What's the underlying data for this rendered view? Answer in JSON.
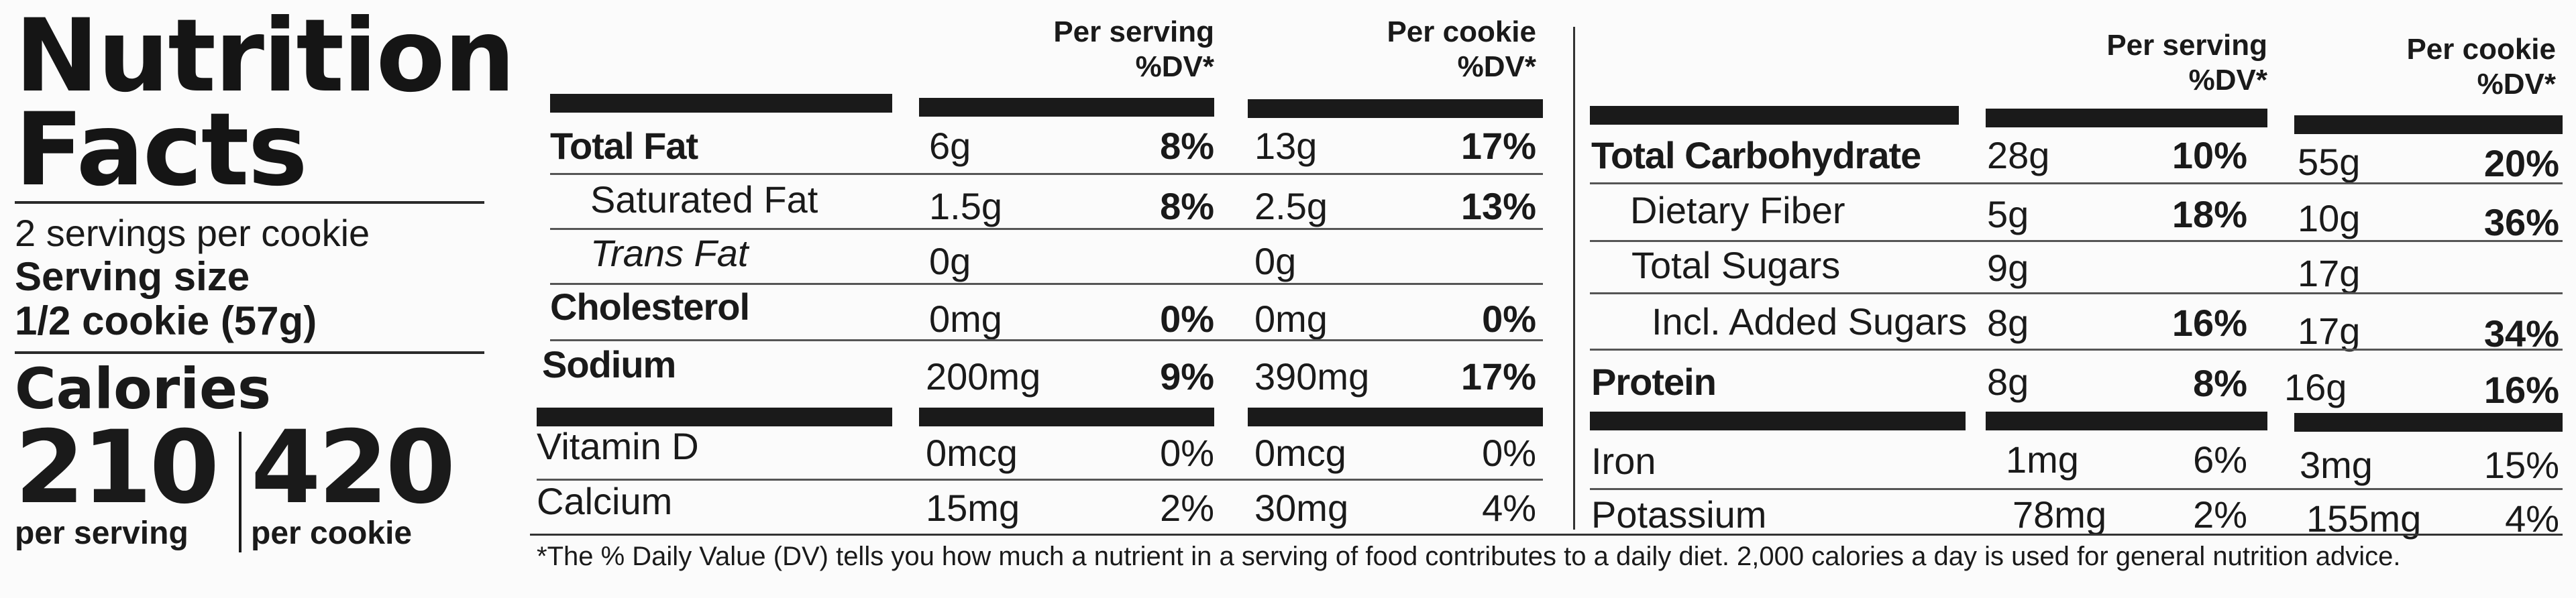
{
  "title_line1": "Nutrition",
  "title_line2": "Facts",
  "servings_per": "2 servings per cookie",
  "serving_size_label": "Serving size",
  "serving_size_value": "1/2 cookie (57g)",
  "calories_label": "Calories",
  "calories_serving": "210",
  "calories_cookie": "420",
  "per_serving_label": "per serving",
  "per_cookie_label": "per cookie",
  "headers": {
    "per_serving": "Per serving",
    "per_cookie": "Per cookie",
    "dv": "%DV*"
  },
  "left_rows": [
    {
      "name": "Total Fat",
      "s_amt": "6g",
      "s_dv": "8%",
      "c_amt": "13g",
      "c_dv": "17%"
    },
    {
      "name": "Saturated Fat",
      "s_amt": "1.5g",
      "s_dv": "8%",
      "c_amt": "2.5g",
      "c_dv": "13%"
    },
    {
      "name": "Trans Fat",
      "s_amt": "0g",
      "s_dv": "",
      "c_amt": "0g",
      "c_dv": ""
    },
    {
      "name": "Cholesterol",
      "s_amt": "0mg",
      "s_dv": "0%",
      "c_amt": "0mg",
      "c_dv": "0%"
    },
    {
      "name": "Sodium",
      "s_amt": "200mg",
      "s_dv": "9%",
      "c_amt": "390mg",
      "c_dv": "17%"
    },
    {
      "name": "Vitamin D",
      "s_amt": "0mcg",
      "s_dv": "0%",
      "c_amt": "0mcg",
      "c_dv": "0%"
    },
    {
      "name": "Calcium",
      "s_amt": "15mg",
      "s_dv": "2%",
      "c_amt": "30mg",
      "c_dv": "4%"
    }
  ],
  "right_rows": [
    {
      "name": "Total Carbohydrate",
      "s_amt": "28g",
      "s_dv": "10%",
      "c_amt": "55g",
      "c_dv": "20%"
    },
    {
      "name": "Dietary Fiber",
      "s_amt": "5g",
      "s_dv": "18%",
      "c_amt": "10g",
      "c_dv": "36%"
    },
    {
      "name": "Total Sugars",
      "s_amt": "9g",
      "s_dv": "",
      "c_amt": "17g",
      "c_dv": ""
    },
    {
      "name": "Incl. Added Sugars",
      "s_amt": "8g",
      "s_dv": "16%",
      "c_amt": "17g",
      "c_dv": "34%"
    },
    {
      "name": "Protein",
      "s_amt": "8g",
      "s_dv": "8%",
      "c_amt": "16g",
      "c_dv": "16%"
    },
    {
      "name": "Iron",
      "s_amt": "1mg",
      "s_dv": "6%",
      "c_amt": "3mg",
      "c_dv": "15%"
    },
    {
      "name": "Potassium",
      "s_amt": "78mg",
      "s_dv": "2%",
      "c_amt": "155mg",
      "c_dv": "4%"
    }
  ],
  "footnote": "*The % Daily Value (DV) tells you how much a nutrient in a serving of food contributes to a daily diet. 2,000 calories a day is used for general nutrition advice."
}
